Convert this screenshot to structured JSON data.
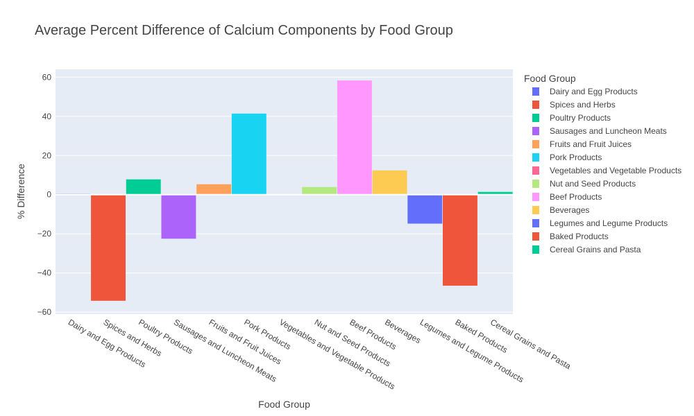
{
  "chart_data": {
    "type": "bar",
    "title": "Average Percent Difference of Calcium Components by Food Group",
    "xlabel": "Food Group",
    "ylabel": "% Difference",
    "ylim": [
      -61,
      64
    ],
    "yticks": [
      60,
      40,
      20,
      0,
      -20,
      -40,
      -60
    ],
    "ytick_labels": [
      "60",
      "40",
      "20",
      "0",
      "−20",
      "−40",
      "−60"
    ],
    "grid": true,
    "legend_title": "Food Group",
    "legend_position": "right",
    "categories": [
      "Dairy and Egg Products",
      "Spices and Herbs",
      "Poultry Products",
      "Sausages and Luncheon Meats",
      "Fruits and Fruit Juices",
      "Pork Products",
      "Vegetables and Vegetable Products",
      "Nut and Seed Products",
      "Beef Products",
      "Beverages",
      "Legumes and Legume Products",
      "Baked Products",
      "Cereal Grains and Pasta"
    ],
    "values": [
      0.4,
      -54.2,
      7.8,
      -22.5,
      5.3,
      41.4,
      0.2,
      3.9,
      58.3,
      12.4,
      -14.8,
      -46.5,
      1.4
    ],
    "colors": [
      "#636efa",
      "#EF553B",
      "#00cc96",
      "#ab63fa",
      "#FFA15A",
      "#19d3f3",
      "#FF6692",
      "#B6E880",
      "#FF97FF",
      "#FECB52",
      "#636efa",
      "#EF553B",
      "#00cc96"
    ]
  }
}
